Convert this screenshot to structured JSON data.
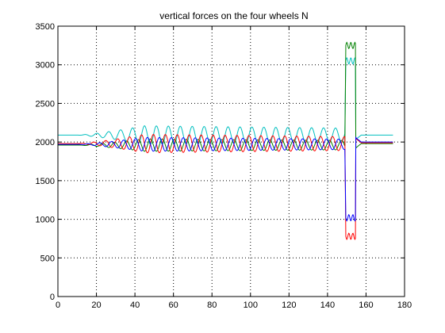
{
  "chart_data": {
    "type": "line",
    "title": "vertical forces on the four wheels N",
    "xlabel": "",
    "ylabel": "",
    "xlim": [
      0,
      180
    ],
    "ylim": [
      0,
      3500
    ],
    "xticks": [
      0,
      20,
      40,
      60,
      80,
      100,
      120,
      140,
      160,
      180
    ],
    "yticks": [
      0,
      500,
      1000,
      1500,
      2000,
      2500,
      3000,
      3500
    ],
    "xtick_labels": [
      "0",
      "20",
      "40",
      "60",
      "80",
      "100",
      "120",
      "140",
      "160",
      "180"
    ],
    "ytick_labels": [
      "0",
      "500",
      "1000",
      "1500",
      "2000",
      "2500",
      "3000",
      "3500"
    ],
    "grid": true,
    "legend": false,
    "series": [
      {
        "color": "#00bfbf",
        "baseline_start": 2090,
        "oscillation_amplitude": 120,
        "oscillation_phase_deg": 0,
        "spike_value": 3050,
        "end_value": 2090
      },
      {
        "color": "#008000",
        "baseline_start": 1960,
        "oscillation_amplitude": 80,
        "oscillation_phase_deg": 180,
        "spike_value": 3250,
        "end_value": 1980
      },
      {
        "color": "#ff0000",
        "baseline_start": 1980,
        "oscillation_amplitude": 120,
        "oscillation_phase_deg": 90,
        "spike_value": 780,
        "end_value": 1990
      },
      {
        "color": "#0000ff",
        "baseline_start": 1970,
        "oscillation_amplitude": 90,
        "oscillation_phase_deg": 270,
        "spike_value": 1020,
        "end_value": 2000
      }
    ],
    "segments": {
      "flat_until_x": 10,
      "oscillation_period": 6.2,
      "oscillation_peak_x": 45,
      "oscillation_end_x": 149,
      "spike_start_x": 149.5,
      "spike_end_x": 154.5,
      "data_end_x": 174
    }
  }
}
